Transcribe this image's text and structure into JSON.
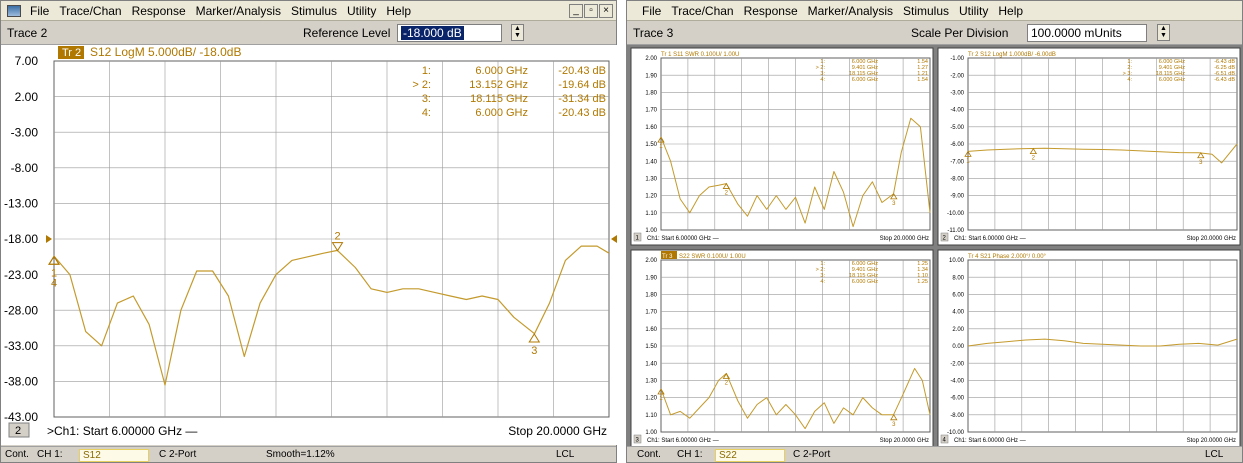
{
  "colors": {
    "trace": "#c49a2c",
    "grid": "#9a9a9a",
    "bg": "#ffffff",
    "trace_badge": "#b07800"
  },
  "left": {
    "app_icon": "analyzer-app-icon",
    "menu": [
      "File",
      "Trace/Chan",
      "Response",
      "Marker/Analysis",
      "Stimulus",
      "Utility",
      "Help"
    ],
    "window_buttons": [
      "_",
      "̅",
      "×"
    ],
    "trace_name": "Trace 2",
    "ref_label": "Reference Level",
    "ref_value": "-18.000 dB",
    "chart_title": "S12 LogM 5.000dB/  -18.0dB",
    "trace_badge": "Tr 2",
    "channel_num": "2",
    "start_label": ">Ch1: Start  6.00000 GHz —",
    "stop_label": "Stop  20.0000 GHz",
    "status": {
      "mode": "Cont.",
      "ch": "CH 1:",
      "param": "S12",
      "port": "C  2-Port",
      "smooth": "Smooth=1.12%",
      "lcl": "LCL"
    }
  },
  "right": {
    "menu": [
      "File",
      "Trace/Chan",
      "Response",
      "Marker/Analysis",
      "Stimulus",
      "Utility",
      "Help"
    ],
    "trace_name": "Trace 3",
    "scale_label": "Scale Per Division",
    "scale_value": "100.0000 mUnits",
    "status": {
      "mode": "Cont.",
      "ch": "CH 1:",
      "param": "S22",
      "port": "C  2-Port",
      "lcl": "LCL"
    }
  },
  "chart_data": [
    {
      "type": "line",
      "title": "S12 LogM 5.000dB/  -18.0dB",
      "xlabel": "",
      "ylabel": "",
      "xlim": [
        6,
        20
      ],
      "ylim": [
        -43,
        7
      ],
      "yticks": [
        "7.00",
        "2.00",
        "-3.00",
        "-8.00",
        "-13.00",
        "-18.00",
        "-23.00",
        "-28.00",
        "-33.00",
        "-38.00",
        "-43.00"
      ],
      "x": [
        6.0,
        6.4,
        6.8,
        7.2,
        7.6,
        8.0,
        8.4,
        8.8,
        9.2,
        9.6,
        10.0,
        10.4,
        10.8,
        11.2,
        11.6,
        12.0,
        12.4,
        12.8,
        13.15,
        13.6,
        14.0,
        14.4,
        14.8,
        15.2,
        15.6,
        16.0,
        16.4,
        16.8,
        17.2,
        17.6,
        18.12,
        18.5,
        18.9,
        19.3,
        19.7,
        20.0
      ],
      "y": [
        -20.4,
        -23,
        -31,
        -33,
        -27,
        -26,
        -30,
        -38.5,
        -28,
        -22.5,
        -22.5,
        -26,
        -34.5,
        -27,
        -23,
        -21,
        -20.5,
        -20,
        -19.6,
        -22,
        -25,
        -25.5,
        -25,
        -25,
        -25.5,
        -26,
        -26.5,
        -26,
        -26.5,
        -29,
        -31.3,
        -27,
        -21,
        -19,
        -19,
        -20
      ],
      "markers": [
        {
          "id": "1",
          "freq": "6.000 GHz",
          "value": "-20.43 dB",
          "active": false
        },
        {
          "id": "2",
          "freq": "13.152 GHz",
          "value": "-19.64 dB",
          "active": true
        },
        {
          "id": "3",
          "freq": "18.115 GHz",
          "value": "-31.34 dB",
          "active": false
        },
        {
          "id": "4",
          "freq": "6.000 GHz",
          "value": "-20.43 dB",
          "active": false
        }
      ],
      "reference_level": -18
    },
    {
      "type": "line",
      "title": "Tr 1  S11 SWR 0.100U/  1.00U",
      "ylim": [
        1.0,
        2.0
      ],
      "yticks": [
        "2.00",
        "1.90",
        "1.80",
        "1.70",
        "1.60",
        "1.50",
        "1.40",
        "1.30",
        "1.20",
        "1.10",
        "1.00"
      ],
      "markers": [
        {
          "id": "1",
          "freq": "6.000 GHz",
          "value": "1.54",
          "active": false
        },
        {
          "id": "2",
          "freq": "9.401 GHz",
          "value": "1.27",
          "active": true
        },
        {
          "id": "3",
          "freq": "18.115 GHz",
          "value": "1.21",
          "active": false
        },
        {
          "id": "4",
          "freq": "6.000 GHz",
          "value": "1.54",
          "active": false
        }
      ],
      "x": [
        6,
        6.5,
        7,
        7.5,
        8,
        8.5,
        9,
        9.4,
        10,
        10.5,
        11,
        11.5,
        12,
        12.5,
        13,
        13.5,
        14,
        14.5,
        15,
        15.5,
        16,
        16.5,
        17,
        17.5,
        18.1,
        18.5,
        19,
        19.5,
        20
      ],
      "y": [
        1.54,
        1.4,
        1.18,
        1.1,
        1.2,
        1.25,
        1.26,
        1.27,
        1.15,
        1.08,
        1.2,
        1.12,
        1.2,
        1.12,
        1.19,
        1.04,
        1.25,
        1.12,
        1.34,
        1.22,
        1.02,
        1.2,
        1.28,
        1.16,
        1.21,
        1.45,
        1.65,
        1.6,
        1.1
      ],
      "start": "Ch1: Start  6.00000 GHz —",
      "stop": "Stop  20.0000 GHz",
      "channel": "1"
    },
    {
      "type": "line",
      "title": "Tr 2  S12 LogM 1.000dB/  -6.00dB",
      "ylim": [
        -11,
        -1
      ],
      "yticks": [
        "-1.00",
        "-2.00",
        "-3.00",
        "-4.00",
        "-5.00",
        "-6.00",
        "-7.00",
        "-8.00",
        "-9.00",
        "-10.00",
        "-11.00"
      ],
      "markers": [
        {
          "id": "1",
          "freq": "6.000 GHz",
          "value": "-6.43 dB",
          "active": false
        },
        {
          "id": "2",
          "freq": "9.401 GHz",
          "value": "-6.25 dB",
          "active": false
        },
        {
          "id": "3",
          "freq": "18.115 GHz",
          "value": "-6.51 dB",
          "active": true
        },
        {
          "id": "4",
          "freq": "6.000 GHz",
          "value": "-6.43 dB",
          "active": false
        }
      ],
      "x": [
        6,
        7,
        8,
        9,
        10,
        11,
        12,
        13,
        14,
        15,
        16,
        17,
        18,
        18.7,
        19.2,
        20
      ],
      "y": [
        -6.43,
        -6.35,
        -6.3,
        -6.27,
        -6.25,
        -6.28,
        -6.3,
        -6.32,
        -6.35,
        -6.4,
        -6.45,
        -6.5,
        -6.51,
        -6.6,
        -7.1,
        -6.0
      ],
      "start": "Ch1: Start  6.00000 GHz —",
      "stop": "Stop  20.0000 GHz",
      "channel": "2"
    },
    {
      "type": "line",
      "title": "S22 SWR 0.100U/  1.00U",
      "badge": "Tr 3",
      "ylim": [
        1.0,
        2.0
      ],
      "yticks": [
        "2.00",
        "1.90",
        "1.80",
        "1.70",
        "1.60",
        "1.50",
        "1.40",
        "1.30",
        "1.20",
        "1.10",
        "1.00"
      ],
      "markers": [
        {
          "id": "1",
          "freq": "6.000 GHz",
          "value": "1.25",
          "active": false
        },
        {
          "id": "2",
          "freq": "9.401 GHz",
          "value": "1.34",
          "active": true
        },
        {
          "id": "3",
          "freq": "18.115 GHz",
          "value": "1.10",
          "active": false
        },
        {
          "id": "4",
          "freq": "6.000 GHz",
          "value": "1.25",
          "active": false
        }
      ],
      "x": [
        6,
        6.5,
        7,
        7.5,
        8,
        8.5,
        9,
        9.4,
        10,
        10.5,
        11,
        11.5,
        12,
        12.5,
        13,
        13.5,
        14,
        14.5,
        15,
        15.5,
        16,
        16.5,
        17,
        17.5,
        18.1,
        18.6,
        19.2,
        19.6,
        20
      ],
      "y": [
        1.25,
        1.1,
        1.12,
        1.08,
        1.14,
        1.2,
        1.3,
        1.34,
        1.18,
        1.08,
        1.16,
        1.2,
        1.1,
        1.16,
        1.1,
        1.02,
        1.12,
        1.17,
        1.05,
        1.14,
        1.1,
        1.2,
        1.14,
        1.1,
        1.1,
        1.22,
        1.37,
        1.3,
        1.1
      ],
      "start": "Ch1: Start  6.00000 GHz —",
      "stop": "Stop  20.0000 GHz",
      "channel": "3"
    },
    {
      "type": "line",
      "title": "Tr 4  S21 Phase 2.000°/  0.00°",
      "ylim": [
        -10,
        10
      ],
      "yticks": [
        "10.00",
        "8.00",
        "6.00",
        "4.00",
        "2.00",
        "0.00",
        "-2.00",
        "-4.00",
        "-6.00",
        "-8.00",
        "-10.00"
      ],
      "x": [
        6,
        7,
        8,
        9,
        10,
        11,
        12,
        13,
        14,
        15,
        16,
        17,
        18,
        19,
        20
      ],
      "y": [
        0,
        0.3,
        0.5,
        0.7,
        0.8,
        0.6,
        0.3,
        0.2,
        0.1,
        0,
        0,
        0.2,
        0.3,
        0.1,
        0.8
      ],
      "start": "Ch1: Start  6.00000 GHz —",
      "stop": "Stop  20.0000 GHz",
      "channel": "4"
    }
  ]
}
